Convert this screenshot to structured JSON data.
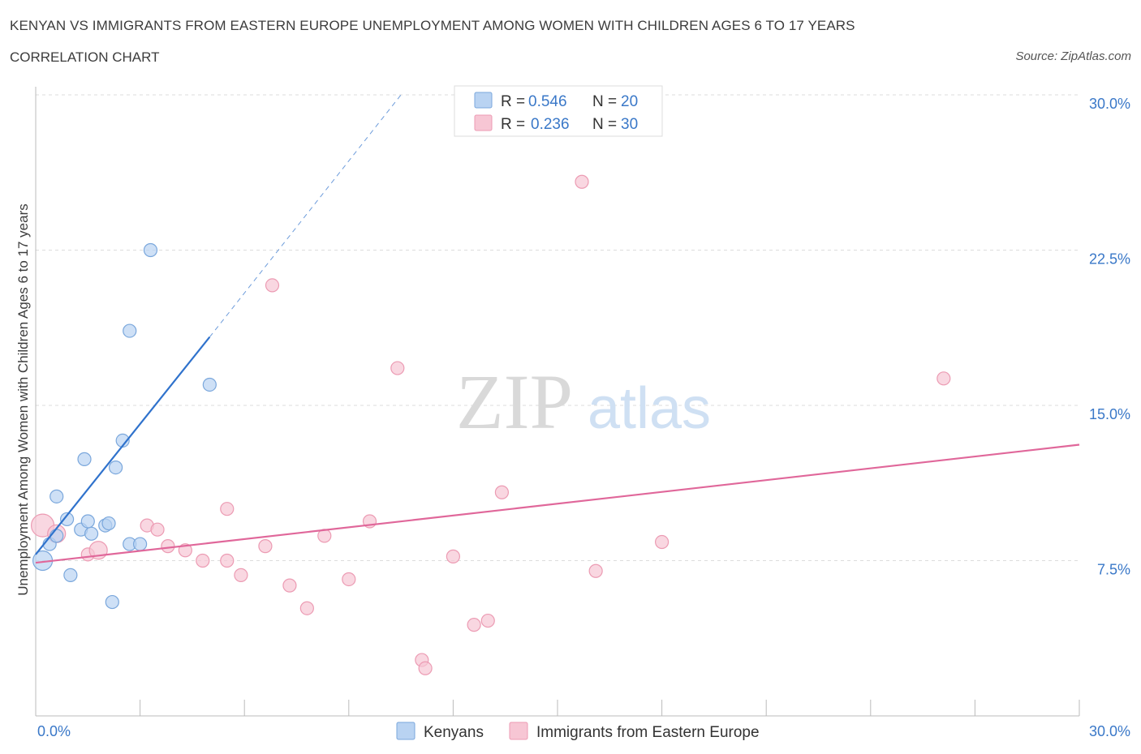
{
  "header": {
    "title": "KENYAN VS IMMIGRANTS FROM EASTERN EUROPE UNEMPLOYMENT AMONG WOMEN WITH CHILDREN AGES 6 TO 17 YEARS",
    "subtitle": "CORRELATION CHART",
    "source": "Source: ZipAtlas.com"
  },
  "watermark": {
    "zip": "ZIP",
    "atlas": "atlas"
  },
  "colors": {
    "blue_fill": "#b9d3f2",
    "blue_stroke": "#7aa7dc",
    "blue_line": "#2f72cc",
    "pink_fill": "#f7c6d4",
    "pink_stroke": "#ec9bb3",
    "pink_line": "#e0679a",
    "tick_label": "#3a78c8",
    "grid": "#dddddd"
  },
  "chart_data": {
    "type": "scatter",
    "title": "KENYAN VS IMMIGRANTS FROM EASTERN EUROPE UNEMPLOYMENT AMONG WOMEN WITH CHILDREN AGES 6 TO 17 YEARS",
    "xlabel": "",
    "ylabel": "Unemployment Among Women with Children Ages 6 to 17 years",
    "xlim": [
      0,
      30
    ],
    "ylim": [
      0,
      30
    ],
    "x_tick_labels": {
      "left": "0.0%",
      "right": "30.0%"
    },
    "y_ticks": [
      {
        "value": 7.5,
        "label": "7.5%"
      },
      {
        "value": 15,
        "label": "15.0%"
      },
      {
        "value": 22.5,
        "label": "22.5%"
      },
      {
        "value": 30,
        "label": "30.0%"
      }
    ],
    "legend_top": [
      {
        "r_label": "R =",
        "r_value": "0.546",
        "n_label": "N =",
        "n_value": "20",
        "series": "Kenyans"
      },
      {
        "r_label": "R =",
        "r_value": "0.236",
        "n_label": "N =",
        "n_value": "30",
        "series": "Immigrants from Eastern Europe"
      }
    ],
    "series": [
      {
        "name": "Kenyans",
        "color": "blue",
        "points": [
          {
            "x": 0.2,
            "y": 7.5
          },
          {
            "x": 0.4,
            "y": 8.3
          },
          {
            "x": 0.6,
            "y": 8.7
          },
          {
            "x": 0.9,
            "y": 9.5
          },
          {
            "x": 1.3,
            "y": 9.0
          },
          {
            "x": 1.6,
            "y": 8.8
          },
          {
            "x": 0.6,
            "y": 10.6
          },
          {
            "x": 1.0,
            "y": 6.8
          },
          {
            "x": 1.4,
            "y": 12.4
          },
          {
            "x": 1.5,
            "y": 9.4
          },
          {
            "x": 2.0,
            "y": 9.2
          },
          {
            "x": 2.1,
            "y": 9.3
          },
          {
            "x": 2.2,
            "y": 5.5
          },
          {
            "x": 2.3,
            "y": 12.0
          },
          {
            "x": 2.5,
            "y": 13.3
          },
          {
            "x": 2.7,
            "y": 18.6
          },
          {
            "x": 2.7,
            "y": 8.3
          },
          {
            "x": 3.0,
            "y": 8.3
          },
          {
            "x": 3.3,
            "y": 22.5
          },
          {
            "x": 5.0,
            "y": 16.0
          }
        ],
        "trendline": {
          "x_start": 0.0,
          "y_start": 7.8,
          "x_end": 5.0,
          "y_end": 18.3,
          "dashed_to_x": 10.5,
          "dashed_to_y": 30.0
        }
      },
      {
        "name": "Immigrants from Eastern Europe",
        "color": "pink",
        "points": [
          {
            "x": 0.2,
            "y": 9.2
          },
          {
            "x": 0.6,
            "y": 8.8
          },
          {
            "x": 1.5,
            "y": 7.8
          },
          {
            "x": 1.8,
            "y": 8.0
          },
          {
            "x": 3.2,
            "y": 9.2
          },
          {
            "x": 3.5,
            "y": 9.0
          },
          {
            "x": 3.8,
            "y": 8.2
          },
          {
            "x": 4.3,
            "y": 8.0
          },
          {
            "x": 4.8,
            "y": 7.5
          },
          {
            "x": 5.5,
            "y": 10.0
          },
          {
            "x": 5.5,
            "y": 7.5
          },
          {
            "x": 5.9,
            "y": 6.8
          },
          {
            "x": 6.6,
            "y": 8.2
          },
          {
            "x": 6.8,
            "y": 20.8
          },
          {
            "x": 7.3,
            "y": 6.3
          },
          {
            "x": 7.8,
            "y": 5.2
          },
          {
            "x": 8.3,
            "y": 8.7
          },
          {
            "x": 9.0,
            "y": 6.6
          },
          {
            "x": 9.6,
            "y": 9.4
          },
          {
            "x": 10.4,
            "y": 16.8
          },
          {
            "x": 11.1,
            "y": 2.7
          },
          {
            "x": 11.2,
            "y": 2.3
          },
          {
            "x": 12.0,
            "y": 7.7
          },
          {
            "x": 12.6,
            "y": 4.4
          },
          {
            "x": 13.0,
            "y": 4.6
          },
          {
            "x": 13.4,
            "y": 10.8
          },
          {
            "x": 15.7,
            "y": 25.8
          },
          {
            "x": 16.1,
            "y": 7.0
          },
          {
            "x": 18.0,
            "y": 8.4
          },
          {
            "x": 26.1,
            "y": 16.3
          }
        ],
        "trendline": {
          "x_start": 0.0,
          "y_start": 7.4,
          "x_end": 30.0,
          "y_end": 13.1
        }
      }
    ],
    "legend_bottom": [
      "Kenyans",
      "Immigrants from Eastern Europe"
    ]
  }
}
